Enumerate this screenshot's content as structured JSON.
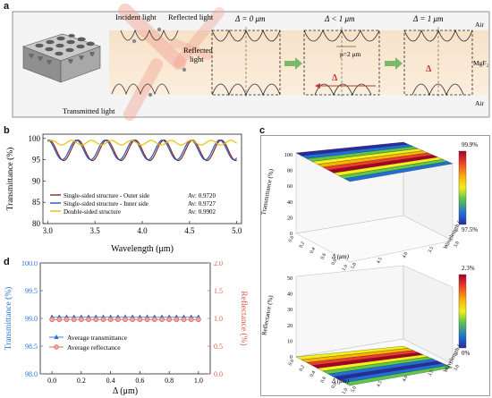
{
  "panels": {
    "a": "a",
    "b": "b",
    "c": "c",
    "d": "d"
  },
  "panel_a": {
    "labels": {
      "incident": "Incident light",
      "reflected_top": "Reflected light",
      "reflected_mid_1": "Reflected",
      "reflected_mid_2": "light",
      "transmitted": "Transmitted light"
    },
    "states": [
      {
        "title": "Δ = 0 μm"
      },
      {
        "title": "Δ < 1 μm",
        "period": "p=2 μm",
        "delta": "Δ"
      },
      {
        "title": "Δ = 1 μm",
        "delta": "Δ"
      }
    ],
    "media": {
      "top": "Air",
      "middle": "MgF₂",
      "bottom": "Air"
    }
  },
  "chart_data": [
    {
      "id": "b",
      "type": "line",
      "xlabel": "Wavelength (μm)",
      "ylabel": "Transmittance (%)",
      "xlim": [
        2.95,
        5.05
      ],
      "ylim": [
        80,
        101
      ],
      "xticks": [
        "3.0",
        "3.5",
        "4.0",
        "4.5",
        "5.0"
      ],
      "yticks": [
        "80",
        "85",
        "90",
        "95",
        "100"
      ],
      "series": [
        {
          "name": "Single-sided structure - Outer side",
          "av": "Av: 0.9720",
          "color": "#8b2a1a",
          "mean": 97.2,
          "amp": 2.4,
          "cycles": 6.6,
          "phase": 1.2
        },
        {
          "name": "Single-sided structure - Inner side",
          "av": "Av: 0.9727",
          "color": "#2a52be",
          "mean": 97.3,
          "amp": 2.3,
          "cycles": 6.6,
          "phase": 1.55
        },
        {
          "name": "Double-sided structure",
          "av": "Av: 0.9902",
          "color": "#e6c300",
          "mean": 99.0,
          "amp": 0.55,
          "cycles": 9.5,
          "phase": 0.3
        }
      ]
    },
    {
      "id": "c_top",
      "type": "surface-3d",
      "zlabel": "Transmittance (%)",
      "xlabel": "Δ (μm)",
      "ylabel": "Wavelength (μm)",
      "zticks": [
        "0",
        "20",
        "40",
        "60",
        "80",
        "100"
      ],
      "delta_ticks": [
        "0.0",
        "0.2",
        "0.4",
        "0.6",
        "0.8",
        "1.0"
      ],
      "wavelength_ticks": [
        "3.0",
        "3.5",
        "4.0",
        "4.5",
        "5.0"
      ],
      "colorbar": {
        "max": "99.9%",
        "min": "97.5%"
      }
    },
    {
      "id": "c_bottom",
      "type": "surface-3d",
      "zlabel": "Reflectance (%)",
      "xlabel": "Δ (μm)",
      "ylabel": "Wavelength (μm)",
      "zticks": [
        "0",
        "10",
        "20",
        "30",
        "40",
        "50"
      ],
      "delta_ticks": [
        "0.0",
        "0.2",
        "0.4",
        "0.6",
        "0.8",
        "1.0"
      ],
      "wavelength_ticks": [
        "3.0",
        "3.5",
        "4.0",
        "4.5",
        "5.0"
      ],
      "colorbar": {
        "max": "2.3%",
        "min": "0%"
      }
    },
    {
      "id": "d",
      "type": "scatter",
      "xlabel": "Δ (μm)",
      "ylabel_left": "Transmittance (%)",
      "ylabel_right": "Reflectance (%)",
      "xlim": [
        -0.08,
        1.08
      ],
      "ylim_left": [
        98.0,
        100.0
      ],
      "ylim_right": [
        0.0,
        2.0
      ],
      "xticks": [
        "0.0",
        "0.2",
        "0.4",
        "0.6",
        "0.8",
        "1.0"
      ],
      "yticks_left": [
        "98.0",
        "98.5",
        "99.0",
        "99.5",
        "100.0"
      ],
      "yticks_right": [
        "0.0",
        "0.5",
        "1.0",
        "1.5",
        "2.0"
      ],
      "x": [
        0.0,
        0.05,
        0.1,
        0.15,
        0.2,
        0.25,
        0.3,
        0.35,
        0.4,
        0.45,
        0.5,
        0.55,
        0.6,
        0.65,
        0.7,
        0.75,
        0.8,
        0.85,
        0.9,
        0.95,
        1.0
      ],
      "series": [
        {
          "name": "Average transmittance",
          "axis": "left",
          "color": "#2a6fd6",
          "value": 99.02
        },
        {
          "name": "Average reflectance",
          "axis": "right",
          "color": "#e05a4a",
          "value": 0.98
        }
      ]
    }
  ]
}
